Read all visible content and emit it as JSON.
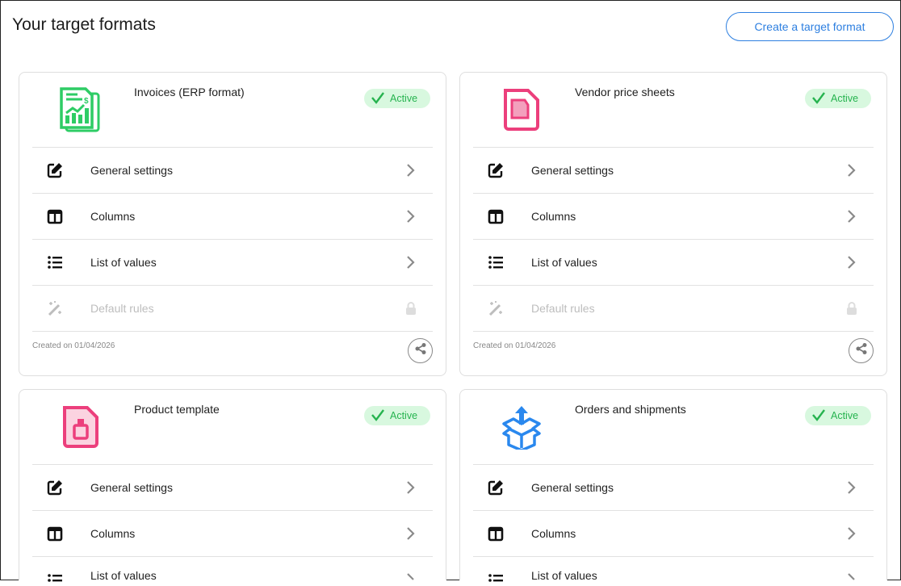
{
  "header": {
    "title": "Your target formats",
    "create_label": "Create a target format"
  },
  "colors": {
    "accent": "#2d7fe0",
    "active_bg": "#d8f8df",
    "active_text": "#26b34f",
    "invoice_icon": "#2ecc65",
    "pink_icon": "#ec3f7c",
    "box_icon": "#2a88ee"
  },
  "cards": [
    {
      "title": "Invoices (ERP format)",
      "icon": "invoice-chart-icon",
      "status": "Active",
      "created": "Created on 01/04/2026",
      "rows": [
        {
          "label": "General settings",
          "icon": "edit-icon",
          "locked": false
        },
        {
          "label": "Columns",
          "icon": "columns-icon",
          "locked": false
        },
        {
          "label": "List of values",
          "icon": "list-icon",
          "locked": false
        },
        {
          "label": "Default rules",
          "icon": "magic-wand-icon",
          "locked": true
        }
      ]
    },
    {
      "title": "Vendor price sheets",
      "icon": "document-sheet-icon",
      "status": "Active",
      "created": "Created on 01/04/2026",
      "rows": [
        {
          "label": "General settings",
          "icon": "edit-icon",
          "locked": false
        },
        {
          "label": "Columns",
          "icon": "columns-icon",
          "locked": false
        },
        {
          "label": "List of values",
          "icon": "list-icon",
          "locked": false
        },
        {
          "label": "Default rules",
          "icon": "magic-wand-icon",
          "locked": true
        }
      ]
    },
    {
      "title": "Product template",
      "icon": "document-bottle-icon",
      "status": "Active",
      "created": "",
      "rows": [
        {
          "label": "General settings",
          "icon": "edit-icon",
          "locked": false
        },
        {
          "label": "Columns",
          "icon": "columns-icon",
          "locked": false
        },
        {
          "label": "List of values",
          "icon": "list-icon",
          "locked": false
        }
      ]
    },
    {
      "title": "Orders and shipments",
      "icon": "box-upload-icon",
      "status": "Active",
      "created": "",
      "rows": [
        {
          "label": "General settings",
          "icon": "edit-icon",
          "locked": false
        },
        {
          "label": "Columns",
          "icon": "columns-icon",
          "locked": false
        },
        {
          "label": "List of values",
          "icon": "list-icon",
          "locked": false
        }
      ]
    }
  ]
}
